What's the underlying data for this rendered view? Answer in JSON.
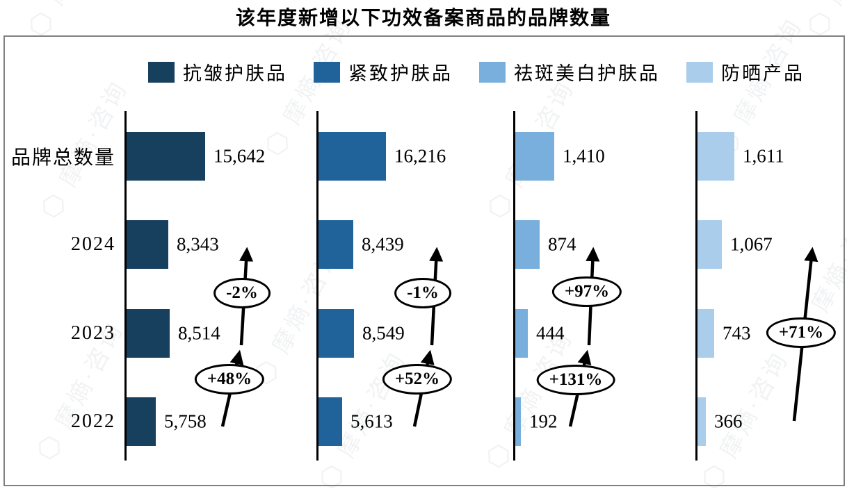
{
  "page": {
    "title": "该年度新增以下功效备案商品的品牌数量"
  },
  "watermark": {
    "text": "摩熵·咨询",
    "logo_icon": "hexagon-seal-icon"
  },
  "chart_data": {
    "type": "bar",
    "orientation": "horizontal",
    "title": "该年度新增以下功效备案商品的品牌数量",
    "legend_position": "top",
    "rows": [
      "品牌总数量",
      "2024",
      "2023",
      "2022"
    ],
    "series": [
      {
        "name": "抗皱护肤品",
        "color": "#173f5e",
        "values": [
          15642,
          8343,
          8514,
          5758
        ],
        "value_labels": [
          "15,642",
          "8,343",
          "8,514",
          "5,758"
        ]
      },
      {
        "name": "紧致护肤品",
        "color": "#20639a",
        "values": [
          16216,
          8439,
          8549,
          5613
        ],
        "value_labels": [
          "16,216",
          "8,439",
          "8,549",
          "5,613"
        ]
      },
      {
        "name": "祛斑美白护肤品",
        "color": "#78afdc",
        "values": [
          1410,
          874,
          444,
          192
        ],
        "value_labels": [
          "1,410",
          "874",
          "444",
          "192"
        ]
      },
      {
        "name": "防晒产品",
        "color": "#a9cdeb",
        "values": [
          1611,
          1067,
          743,
          366
        ],
        "value_labels": [
          "1,611",
          "1,067",
          "743",
          "366"
        ]
      }
    ],
    "annotations": [
      {
        "series": "抗皱护肤品",
        "segment": "2023→2024",
        "label": "-2%"
      },
      {
        "series": "抗皱护肤品",
        "segment": "2022→2023",
        "label": "+48%"
      },
      {
        "series": "紧致护肤品",
        "segment": "2023→2024",
        "label": "-1%"
      },
      {
        "series": "紧致护肤品",
        "segment": "2022→2023",
        "label": "+52%"
      },
      {
        "series": "祛斑美白护肤品",
        "segment": "2023→2024",
        "label": "+97%"
      },
      {
        "series": "祛斑美白护肤品",
        "segment": "2022→2023",
        "label": "+131%"
      },
      {
        "series": "防晒产品",
        "segment": "2022→2024",
        "label": "+71%"
      }
    ]
  }
}
